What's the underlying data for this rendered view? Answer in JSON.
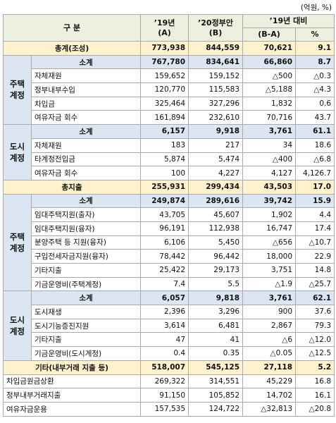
{
  "table": {
    "unit": "(억원, %)",
    "header": {
      "category": "구  분",
      "col_a": [
        "’19년",
        "(A)"
      ],
      "col_b": [
        "’20정부안",
        "(B)"
      ],
      "col_diff": "’19년 대비",
      "col_ba": "(B-A)",
      "col_pct": "%"
    },
    "sections": [
      {
        "total": {
          "label": "총계(조성)",
          "values": [
            "773,938",
            "844,559",
            "70,621",
            "9.1"
          ]
        },
        "groups": [
          {
            "name": "주택계정",
            "subtotal": {
              "label": "소계",
              "values": [
                "767,780",
                "834,641",
                "66,860",
                "8.7"
              ]
            },
            "rows": [
              {
                "label": "자체재원",
                "values": [
                  "159,652",
                  "159,152",
                  "△500",
                  "△0.3"
                ]
              },
              {
                "label": "정부내부수입",
                "values": [
                  "120,770",
                  "115,583",
                  "△5,188",
                  "△4.3"
                ]
              },
              {
                "label": "차입금",
                "values": [
                  "325,464",
                  "327,296",
                  "1,832",
                  "0.6"
                ]
              },
              {
                "label": "여유자금 회수",
                "values": [
                  "161,894",
                  "232,610",
                  "70,716",
                  "43.7"
                ]
              }
            ]
          },
          {
            "name": "도시계정",
            "subtotal": {
              "label": "소계",
              "values": [
                "6,157",
                "9,918",
                "3,761",
                "61.1"
              ]
            },
            "rows": [
              {
                "label": "자체재원",
                "values": [
                  "183",
                  "217",
                  "34",
                  "18.6"
                ]
              },
              {
                "label": "타계정전입금",
                "values": [
                  "5,874",
                  "5,474",
                  "△400",
                  "△6.8"
                ]
              },
              {
                "label": "여유자금 회수",
                "values": [
                  "100",
                  "4,227",
                  "4,127",
                  "4,126.7"
                ]
              }
            ]
          }
        ]
      },
      {
        "total": {
          "label": "총지출",
          "values": [
            "255,931",
            "299,434",
            "43,503",
            "17.0"
          ]
        },
        "groups": [
          {
            "name": "주택계정",
            "subtotal": {
              "label": "소계",
              "values": [
                "249,874",
                "289,616",
                "39,742",
                "15.9"
              ]
            },
            "rows": [
              {
                "label": "임대주택지원(출자)",
                "values": [
                  "43,705",
                  "45,607",
                  "1,902",
                  "4.4"
                ]
              },
              {
                "label": "임대주택지원(융자)",
                "values": [
                  "96,191",
                  "112,938",
                  "16,747",
                  "17.4"
                ]
              },
              {
                "label": "분양주택 등 지원(융자)",
                "values": [
                  "6,106",
                  "5,450",
                  "△656",
                  "△10.7"
                ]
              },
              {
                "label": "구입전세자금지원(융자)",
                "values": [
                  "78,442",
                  "96,442",
                  "18,000",
                  "22.9"
                ]
              },
              {
                "label": "기타지출",
                "values": [
                  "25,422",
                  "29,173",
                  "3,751",
                  "14.8"
                ]
              },
              {
                "label": "기금운영비(주택계정)",
                "values": [
                  "7.4",
                  "5.5",
                  "△1.9",
                  "△25.7"
                ]
              }
            ]
          },
          {
            "name": "도시계정",
            "subtotal": {
              "label": "소계",
              "values": [
                "6,057",
                "9,818",
                "3,761",
                "62.1"
              ]
            },
            "rows": [
              {
                "label": "도시재생",
                "values": [
                  "2,396",
                  "3,296",
                  "900",
                  "37.6"
                ]
              },
              {
                "label": "도시기능증진지원",
                "values": [
                  "3,614",
                  "6,481",
                  "2,867",
                  "79.3"
                ]
              },
              {
                "label": "기타지출",
                "values": [
                  "47",
                  "41",
                  "△6",
                  "△12.0"
                ]
              },
              {
                "label": "기금운영비(도시계정)",
                "values": [
                  "0.4",
                  "0.35",
                  "△0.05",
                  "△12.5"
                ]
              }
            ]
          }
        ]
      },
      {
        "total": {
          "label": "기타(내부거래 지출 등)",
          "values": [
            "518,007",
            "545,125",
            "27,118",
            "5.2"
          ]
        },
        "rows": [
          {
            "label": "차입금원금상환",
            "values": [
              "269,322",
              "314,551",
              "45,229",
              "16.8"
            ]
          },
          {
            "label": "정부내부거래지출",
            "values": [
              "91,150",
              "105,852",
              "14,702",
              "16.1"
            ]
          },
          {
            "label": "여유자금운용",
            "values": [
              "157,535",
              "124,722",
              "△32,813",
              "△20.8"
            ]
          }
        ]
      }
    ]
  }
}
